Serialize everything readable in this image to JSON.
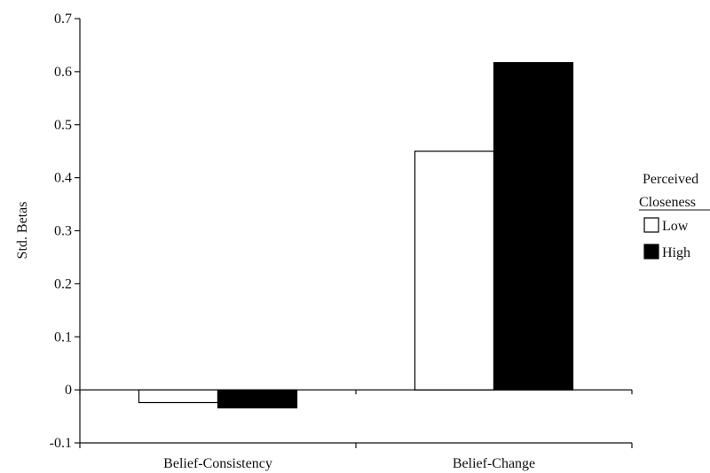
{
  "chart_data": {
    "type": "bar",
    "title": "",
    "xlabel": "",
    "ylabel": "Std. Betas",
    "ylim": [
      -0.1,
      0.7
    ],
    "yticks": [
      -0.1,
      0,
      0.1,
      0.2,
      0.3,
      0.4,
      0.5,
      0.6,
      0.7
    ],
    "ytick_labels": [
      "-0.1",
      "0",
      "0.1",
      "0.2",
      "0.3",
      "0.4",
      "0.5",
      "0.6",
      "0.7"
    ],
    "categories": [
      "Belief-Consistency",
      "Belief-Change"
    ],
    "series": [
      {
        "name": "Low",
        "values": [
          -0.024,
          0.45
        ],
        "fill": "#ffffff"
      },
      {
        "name": "High",
        "values": [
          -0.034,
          0.617
        ],
        "fill": "#000000"
      }
    ],
    "grid": false,
    "legend": {
      "title_line1": "Perceived",
      "title_line2": "Closeness",
      "position": "right"
    }
  },
  "colors": {
    "axis": "#111111",
    "bar_stroke": "#000000"
  }
}
